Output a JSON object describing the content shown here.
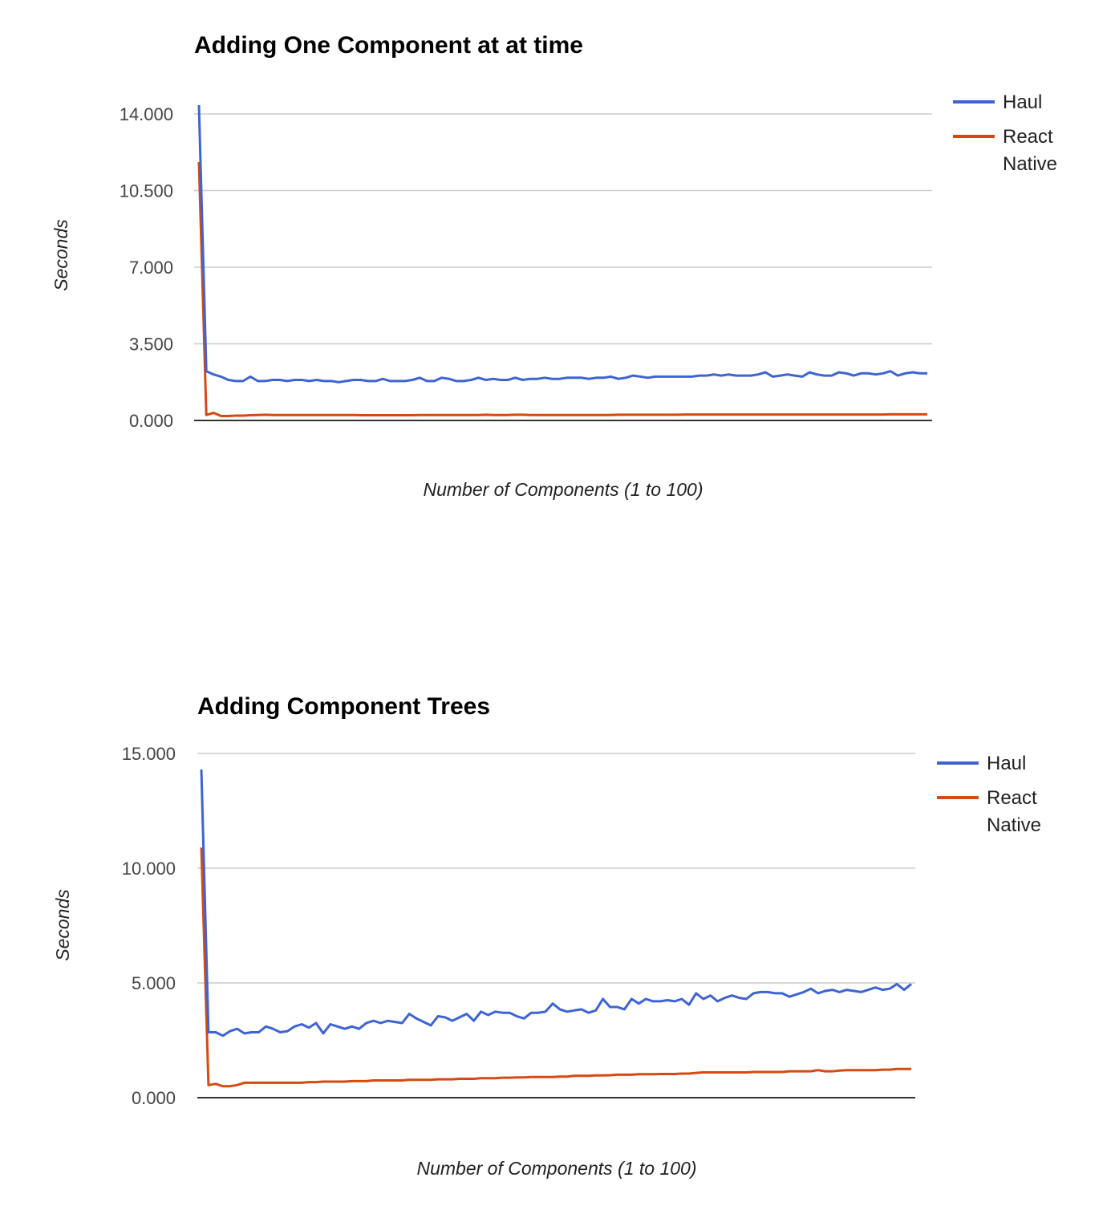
{
  "colors": {
    "haul": "#3e64d4",
    "react_native": "#d64a12"
  },
  "chart_data": [
    {
      "type": "line",
      "title": "Adding One Component at at time",
      "xlabel": "Number of Components (1 to 100)",
      "ylabel": "Seconds",
      "ylim": [
        0,
        14
      ],
      "yticks": [
        "0.000",
        "3.500",
        "7.000",
        "10.500",
        "14.000"
      ],
      "grid": true,
      "legend": "right",
      "x": [
        1,
        2,
        3,
        4,
        5,
        6,
        7,
        8,
        9,
        10,
        11,
        12,
        13,
        14,
        15,
        16,
        17,
        18,
        19,
        20,
        21,
        22,
        23,
        24,
        25,
        26,
        27,
        28,
        29,
        30,
        31,
        32,
        33,
        34,
        35,
        36,
        37,
        38,
        39,
        40,
        41,
        42,
        43,
        44,
        45,
        46,
        47,
        48,
        49,
        50,
        51,
        52,
        53,
        54,
        55,
        56,
        57,
        58,
        59,
        60,
        61,
        62,
        63,
        64,
        65,
        66,
        67,
        68,
        69,
        70,
        71,
        72,
        73,
        74,
        75,
        76,
        77,
        78,
        79,
        80,
        81,
        82,
        83,
        84,
        85,
        86,
        87,
        88,
        89,
        90,
        91,
        92,
        93,
        94,
        95,
        96,
        97,
        98,
        99,
        100
      ],
      "series": [
        {
          "name": "Haul",
          "values": [
            14.4,
            2.25,
            2.1,
            2.0,
            1.85,
            1.8,
            1.8,
            2.0,
            1.8,
            1.8,
            1.85,
            1.85,
            1.8,
            1.85,
            1.85,
            1.8,
            1.85,
            1.8,
            1.8,
            1.75,
            1.8,
            1.85,
            1.85,
            1.8,
            1.8,
            1.9,
            1.8,
            1.8,
            1.8,
            1.85,
            1.95,
            1.8,
            1.8,
            1.95,
            1.9,
            1.8,
            1.8,
            1.85,
            1.95,
            1.85,
            1.9,
            1.85,
            1.85,
            1.95,
            1.85,
            1.9,
            1.9,
            1.95,
            1.9,
            1.9,
            1.95,
            1.95,
            1.95,
            1.9,
            1.95,
            1.95,
            2.0,
            1.9,
            1.95,
            2.05,
            2.0,
            1.95,
            2.0,
            2.0,
            2.0,
            2.0,
            2.0,
            2.0,
            2.05,
            2.05,
            2.1,
            2.05,
            2.1,
            2.05,
            2.05,
            2.05,
            2.1,
            2.2,
            2.0,
            2.05,
            2.1,
            2.05,
            2.0,
            2.2,
            2.1,
            2.05,
            2.05,
            2.2,
            2.15,
            2.05,
            2.15,
            2.15,
            2.1,
            2.15,
            2.25,
            2.05,
            2.15,
            2.2,
            2.15,
            2.15
          ]
        },
        {
          "name": "React Native",
          "values": [
            11.8,
            0.25,
            0.35,
            0.2,
            0.2,
            0.22,
            0.22,
            0.24,
            0.25,
            0.26,
            0.25,
            0.25,
            0.25,
            0.25,
            0.25,
            0.25,
            0.25,
            0.25,
            0.25,
            0.25,
            0.25,
            0.25,
            0.24,
            0.24,
            0.24,
            0.24,
            0.24,
            0.24,
            0.24,
            0.24,
            0.25,
            0.25,
            0.25,
            0.25,
            0.25,
            0.25,
            0.25,
            0.25,
            0.25,
            0.26,
            0.25,
            0.25,
            0.25,
            0.26,
            0.26,
            0.25,
            0.25,
            0.25,
            0.25,
            0.25,
            0.25,
            0.25,
            0.25,
            0.25,
            0.25,
            0.25,
            0.25,
            0.26,
            0.26,
            0.26,
            0.26,
            0.26,
            0.26,
            0.26,
            0.26,
            0.26,
            0.27,
            0.27,
            0.27,
            0.27,
            0.27,
            0.27,
            0.27,
            0.27,
            0.27,
            0.27,
            0.27,
            0.27,
            0.27,
            0.27,
            0.27,
            0.27,
            0.27,
            0.27,
            0.27,
            0.27,
            0.27,
            0.27,
            0.27,
            0.27,
            0.27,
            0.27,
            0.27,
            0.27,
            0.28,
            0.28,
            0.28,
            0.28,
            0.28,
            0.28
          ]
        }
      ]
    },
    {
      "type": "line",
      "title": "Adding Component Trees",
      "xlabel": "Number of Components (1 to 100)",
      "ylabel": "Seconds",
      "ylim": [
        0,
        15
      ],
      "yticks": [
        "0.000",
        "5.000",
        "10.000",
        "15.000"
      ],
      "grid": true,
      "legend": "right",
      "x": [
        1,
        2,
        3,
        4,
        5,
        6,
        7,
        8,
        9,
        10,
        11,
        12,
        13,
        14,
        15,
        16,
        17,
        18,
        19,
        20,
        21,
        22,
        23,
        24,
        25,
        26,
        27,
        28,
        29,
        30,
        31,
        32,
        33,
        34,
        35,
        36,
        37,
        38,
        39,
        40,
        41,
        42,
        43,
        44,
        45,
        46,
        47,
        48,
        49,
        50,
        51,
        52,
        53,
        54,
        55,
        56,
        57,
        58,
        59,
        60,
        61,
        62,
        63,
        64,
        65,
        66,
        67,
        68,
        69,
        70,
        71,
        72,
        73,
        74,
        75,
        76,
        77,
        78,
        79,
        80,
        81,
        82,
        83,
        84,
        85,
        86,
        87,
        88,
        89,
        90,
        91,
        92,
        93,
        94,
        95,
        96,
        97,
        98,
        99,
        100
      ],
      "series": [
        {
          "name": "Haul",
          "values": [
            14.3,
            2.85,
            2.85,
            2.7,
            2.9,
            3.0,
            2.8,
            2.85,
            2.85,
            3.1,
            3.0,
            2.85,
            2.9,
            3.1,
            3.2,
            3.05,
            3.25,
            2.8,
            3.2,
            3.1,
            3.0,
            3.1,
            3.0,
            3.25,
            3.35,
            3.25,
            3.35,
            3.3,
            3.25,
            3.65,
            3.45,
            3.3,
            3.15,
            3.55,
            3.5,
            3.35,
            3.5,
            3.65,
            3.35,
            3.75,
            3.6,
            3.75,
            3.7,
            3.7,
            3.55,
            3.45,
            3.7,
            3.7,
            3.75,
            4.1,
            3.85,
            3.75,
            3.8,
            3.85,
            3.7,
            3.8,
            4.3,
            3.95,
            3.95,
            3.85,
            4.3,
            4.1,
            4.3,
            4.2,
            4.2,
            4.25,
            4.2,
            4.3,
            4.05,
            4.55,
            4.3,
            4.45,
            4.2,
            4.35,
            4.45,
            4.35,
            4.3,
            4.55,
            4.6,
            4.6,
            4.55,
            4.55,
            4.4,
            4.5,
            4.6,
            4.75,
            4.55,
            4.65,
            4.7,
            4.6,
            4.7,
            4.65,
            4.6,
            4.7,
            4.8,
            4.7,
            4.75,
            4.95,
            4.7,
            4.95
          ]
        },
        {
          "name": "React Native",
          "values": [
            10.9,
            0.55,
            0.6,
            0.5,
            0.5,
            0.55,
            0.65,
            0.65,
            0.65,
            0.65,
            0.65,
            0.65,
            0.65,
            0.65,
            0.65,
            0.68,
            0.68,
            0.7,
            0.7,
            0.7,
            0.7,
            0.72,
            0.72,
            0.72,
            0.75,
            0.75,
            0.75,
            0.75,
            0.75,
            0.78,
            0.78,
            0.78,
            0.78,
            0.8,
            0.8,
            0.8,
            0.82,
            0.82,
            0.82,
            0.85,
            0.85,
            0.85,
            0.87,
            0.87,
            0.88,
            0.88,
            0.9,
            0.9,
            0.9,
            0.9,
            0.92,
            0.92,
            0.95,
            0.95,
            0.95,
            0.97,
            0.97,
            0.98,
            1.0,
            1.0,
            1.0,
            1.02,
            1.02,
            1.02,
            1.03,
            1.03,
            1.03,
            1.05,
            1.05,
            1.08,
            1.1,
            1.1,
            1.1,
            1.1,
            1.1,
            1.1,
            1.1,
            1.12,
            1.12,
            1.12,
            1.12,
            1.12,
            1.15,
            1.15,
            1.15,
            1.15,
            1.2,
            1.15,
            1.15,
            1.18,
            1.2,
            1.2,
            1.2,
            1.2,
            1.2,
            1.22,
            1.22,
            1.25,
            1.25,
            1.25
          ]
        }
      ]
    }
  ]
}
